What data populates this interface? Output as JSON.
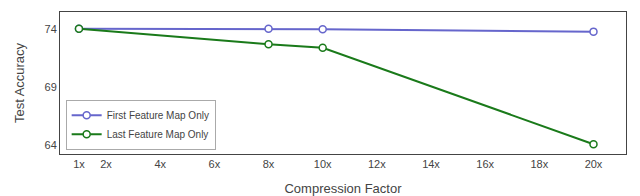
{
  "chart_data": {
    "type": "line",
    "x": [
      1,
      8,
      10,
      20
    ],
    "series": [
      {
        "name": "First Feature Map Only",
        "color": "#6666cc",
        "values": [
          74.05,
          74.05,
          74.0,
          73.8
        ]
      },
      {
        "name": "Last Feature Map Only",
        "color": "#1a7a1a",
        "values": [
          74.05,
          72.7,
          72.4,
          64.05
        ]
      }
    ],
    "xlabel": "Compression Factor",
    "ylabel": "Test Accuracy",
    "xlim": [
      0.3,
      21.2
    ],
    "xticks": [
      {
        "value": 1,
        "label": "1x"
      },
      {
        "value": 2,
        "label": "2x"
      },
      {
        "value": 4,
        "label": "4x"
      },
      {
        "value": 6,
        "label": "6x"
      },
      {
        "value": 8,
        "label": "8x"
      },
      {
        "value": 10,
        "label": "10x"
      },
      {
        "value": 12,
        "label": "12x"
      },
      {
        "value": 14,
        "label": "14x"
      },
      {
        "value": 16,
        "label": "16x"
      },
      {
        "value": 18,
        "label": "18x"
      },
      {
        "value": 20,
        "label": "20x"
      }
    ],
    "ylim": [
      63.2,
      75.5
    ],
    "yticks": [
      64,
      69,
      74
    ],
    "marker": "circle",
    "grid": false,
    "legend": "lower left"
  }
}
